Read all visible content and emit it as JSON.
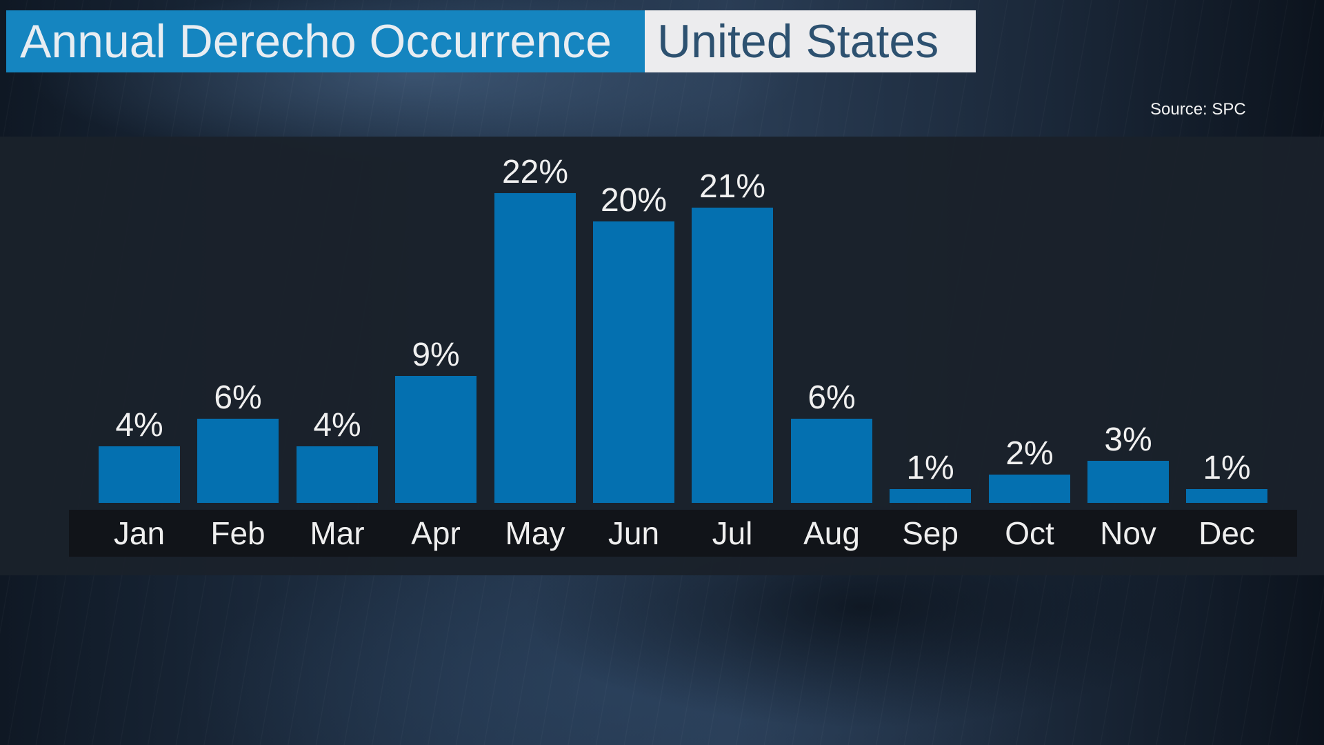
{
  "header": {
    "title": "Annual Derecho Occurrence",
    "region": "United States"
  },
  "source": "Source: SPC",
  "colors": {
    "title_bg": "#1585c0",
    "region_bg": "#ececee",
    "region_text": "#2d5170",
    "bar": "#0470b0",
    "panel": "#1a212b",
    "label_strip": "#111419"
  },
  "bars": [
    {
      "month": "Jan",
      "label": "4%"
    },
    {
      "month": "Feb",
      "label": "6%"
    },
    {
      "month": "Mar",
      "label": "4%"
    },
    {
      "month": "Apr",
      "label": "9%"
    },
    {
      "month": "May",
      "label": "22%"
    },
    {
      "month": "Jun",
      "label": "20%"
    },
    {
      "month": "Jul",
      "label": "21%"
    },
    {
      "month": "Aug",
      "label": "6%"
    },
    {
      "month": "Sep",
      "label": "1%"
    },
    {
      "month": "Oct",
      "label": "2%"
    },
    {
      "month": "Nov",
      "label": "3%"
    },
    {
      "month": "Dec",
      "label": "1%"
    }
  ],
  "chart_data": {
    "type": "bar",
    "title": "Annual Derecho Occurrence — United States",
    "categories": [
      "Jan",
      "Feb",
      "Mar",
      "Apr",
      "May",
      "Jun",
      "Jul",
      "Aug",
      "Sep",
      "Oct",
      "Nov",
      "Dec"
    ],
    "values": [
      4,
      6,
      4,
      9,
      22,
      20,
      21,
      6,
      1,
      2,
      3,
      1
    ],
    "unit": "%",
    "xlabel": "",
    "ylabel": "",
    "ylim": [
      0,
      22
    ],
    "grid": false,
    "legend": null,
    "annotations": [
      "Source: SPC"
    ]
  }
}
